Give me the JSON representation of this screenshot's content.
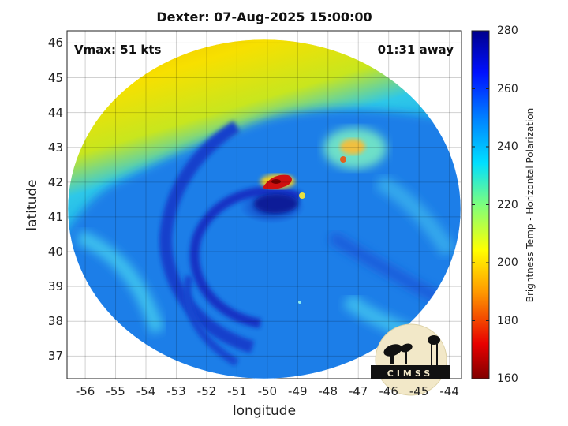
{
  "title": "Dexter: 07-Aug-2025 15:00:00",
  "annotations": {
    "vmax": "Vmax: 51 kts",
    "time_away": "01:31 away"
  },
  "xaxis": {
    "label": "longitude",
    "ticks": [
      "-56",
      "-55",
      "-54",
      "-53",
      "-52",
      "-51",
      "-50",
      "-49",
      "-48",
      "-47",
      "-46",
      "-45",
      "-44"
    ],
    "range": [
      -56.6,
      -43.6
    ]
  },
  "yaxis": {
    "label": "latitude",
    "ticks": [
      "37",
      "38",
      "39",
      "40",
      "41",
      "42",
      "43",
      "44",
      "45",
      "46"
    ],
    "range": [
      36.35,
      46.35
    ]
  },
  "colorbar": {
    "label": "Brightness Temp - Horizontal Polarization",
    "ticks": [
      "160",
      "180",
      "200",
      "220",
      "240",
      "260",
      "280"
    ],
    "range": [
      160,
      280
    ]
  },
  "logo": {
    "text": "CIMSS"
  },
  "colors": {
    "cold_core": "#0a1a8c",
    "warm_background": "#f5d400",
    "accent_red": "#d01010"
  },
  "grid": true
}
